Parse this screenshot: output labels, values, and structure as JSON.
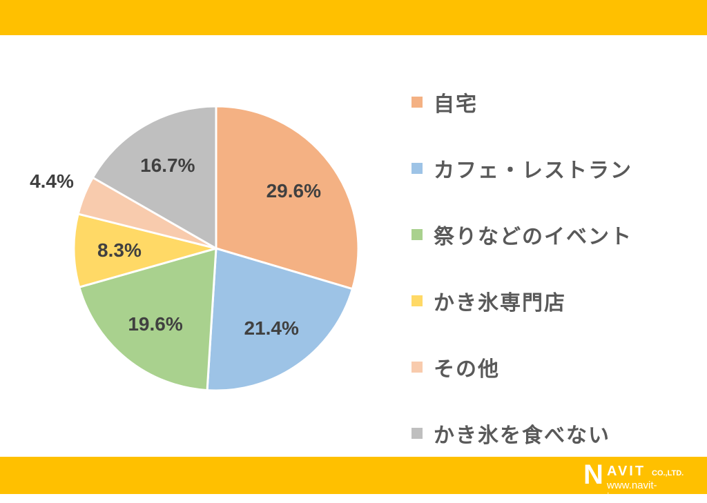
{
  "colors": {
    "banner": "#FFC000",
    "label_text": "#404040",
    "legend_text": "#595959"
  },
  "chart_data": {
    "type": "pie",
    "start": "top",
    "direction": "clockwise",
    "categories": [
      "自宅",
      "カフェ・レストラン",
      "祭りなどのイベント",
      "かき氷専門店",
      "その他",
      "かき氷を食べない"
    ],
    "values": [
      29.6,
      21.4,
      19.6,
      8.3,
      4.4,
      16.7
    ],
    "labels": [
      "29.6%",
      "21.4%",
      "19.6%",
      "8.3%",
      "4.4%",
      "16.7%"
    ],
    "colors": [
      "#F4B183",
      "#9DC3E6",
      "#A9D18E",
      "#FFD966",
      "#F8CBAD",
      "#BFBFBF"
    ],
    "legend": "right"
  },
  "logo": {
    "text": "NAVIT",
    "company": "CO.,LTD.",
    "url": "www.navit-j.com"
  }
}
